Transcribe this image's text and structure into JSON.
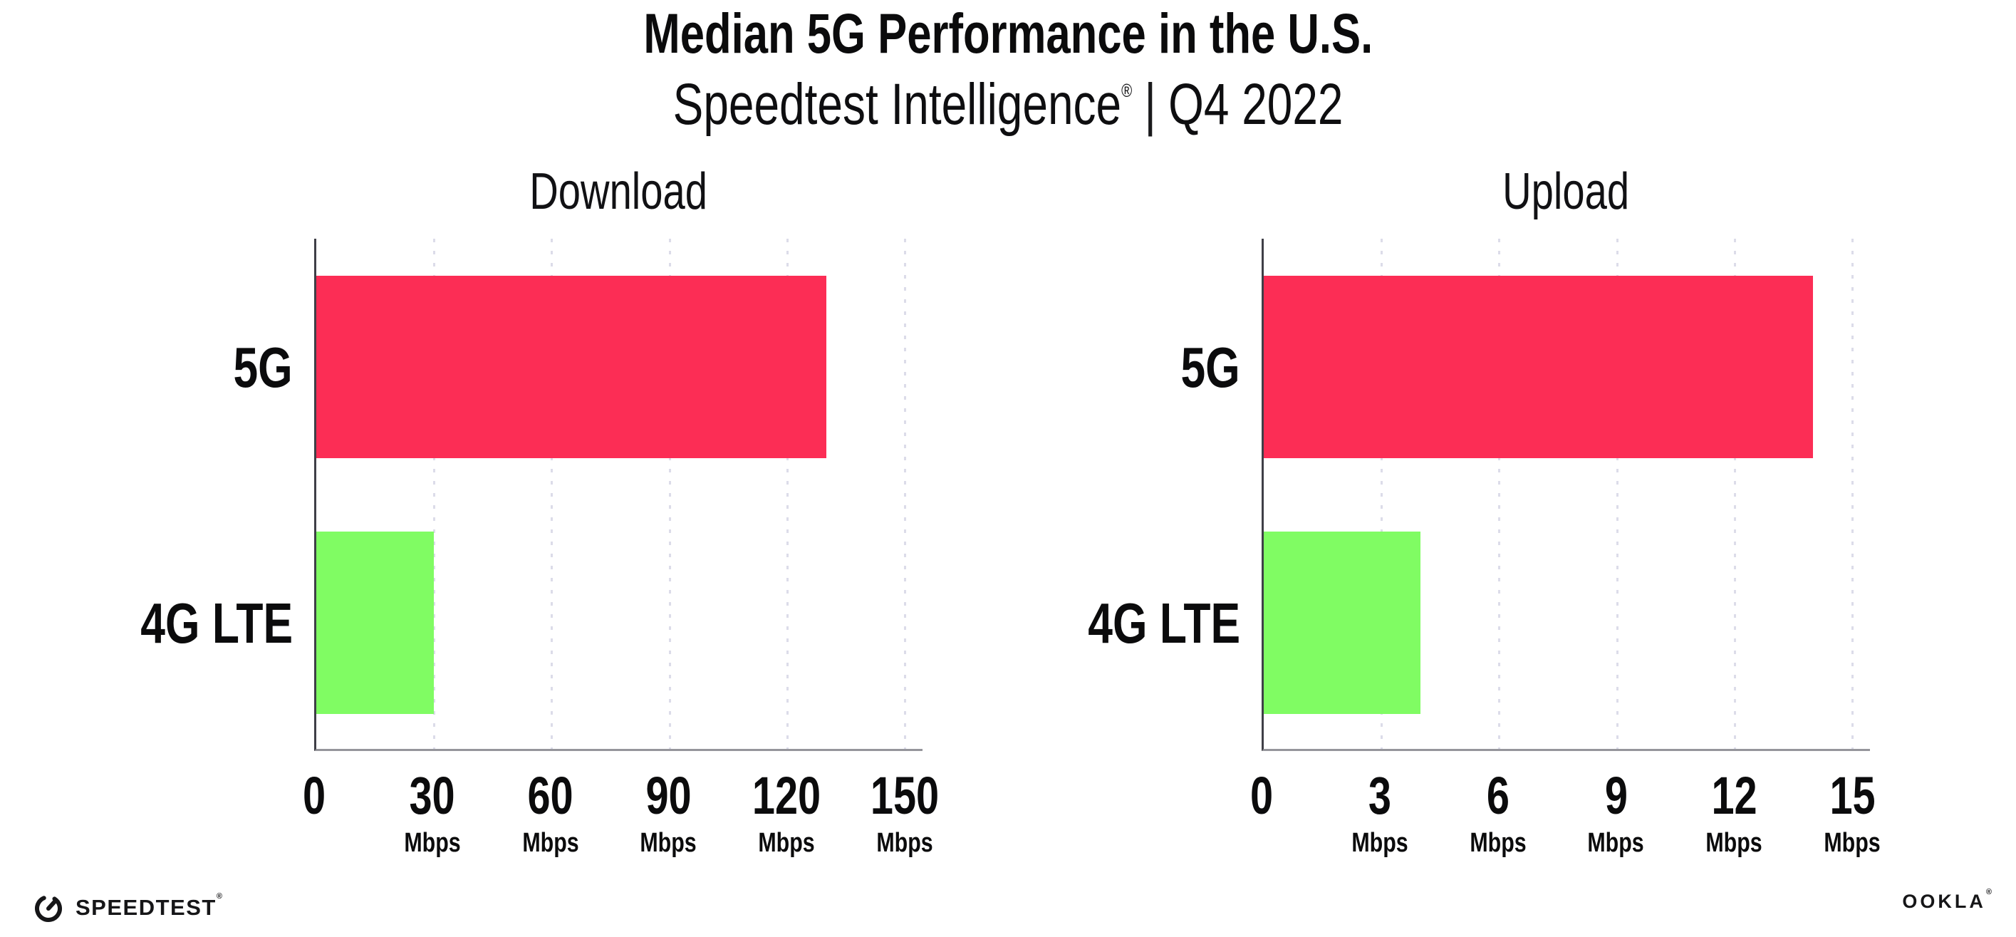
{
  "header": {
    "title": "Median 5G Performance in the U.S.",
    "subtitle_brand": "Speedtest Intelligence",
    "subtitle_reg": "®",
    "subtitle_sep": "|",
    "subtitle_period": "Q4 2022"
  },
  "colors": {
    "bar_5g": "#FC2D55",
    "bar_4g_lte": "#80FC63",
    "x_axis_line": "#95959b",
    "y_axis_line": "#3f3f47",
    "gridline_dots": "#dcdce9",
    "text": "#0b0b0c",
    "background": "#ffffff"
  },
  "chart_data": [
    {
      "type": "bar",
      "orientation": "horizontal",
      "title": "Download",
      "categories": [
        "5G",
        "4G LTE"
      ],
      "values": [
        130,
        30
      ],
      "unit": "Mbps",
      "ticks": [
        0,
        30,
        60,
        90,
        120,
        150
      ],
      "tick_unit_label": "Mbps",
      "xlim": [
        0,
        154.5
      ],
      "grid": "dotted-vertical",
      "legend": "none",
      "bar_colors": [
        "#FC2D55",
        "#80FC63"
      ]
    },
    {
      "type": "bar",
      "orientation": "horizontal",
      "title": "Upload",
      "categories": [
        "5G",
        "4G LTE"
      ],
      "values": [
        14,
        4
      ],
      "unit": "Mbps",
      "ticks": [
        0,
        3,
        6,
        9,
        12,
        15
      ],
      "tick_unit_label": "Mbps",
      "xlim": [
        0,
        15.45
      ],
      "grid": "dotted-vertical",
      "legend": "none",
      "bar_colors": [
        "#FC2D55",
        "#80FC63"
      ]
    }
  ],
  "footer": {
    "speedtest_label": "SPEEDTEST",
    "speedtest_reg": "®",
    "ookla_label": "OOKLA",
    "ookla_reg": "®"
  }
}
